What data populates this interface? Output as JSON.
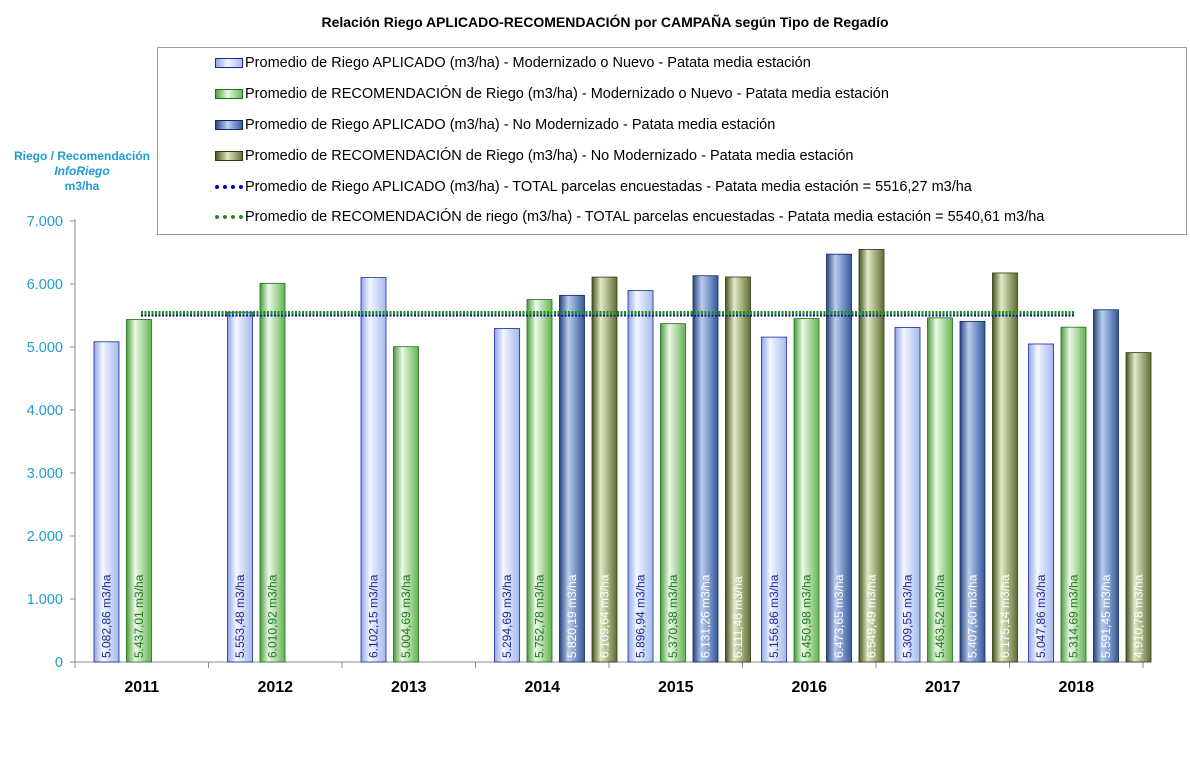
{
  "chart_data": {
    "type": "bar",
    "title": "Relación Riego APLICADO-RECOMENDACIÓN por CAMPAÑA  según Tipo de Regadío",
    "ylabel_lines": [
      "Riego / Recomendación",
      "InfoRiego",
      "m3/ha"
    ],
    "ylim": [
      0,
      7000
    ],
    "yticks": [
      "0",
      "1.000",
      "2.000",
      "3.000",
      "4.000",
      "5.000",
      "6.000",
      "7.000"
    ],
    "ytick_values": [
      0,
      1000,
      2000,
      3000,
      4000,
      5000,
      6000,
      7000
    ],
    "categories": [
      "2011",
      "2012",
      "2013",
      "2014",
      "2015",
      "2016",
      "2017",
      "2018"
    ],
    "unit_suffix": "m3/ha",
    "series": [
      {
        "name": "Promedio de Riego APLICADO (m3/ha) - Modernizado o Nuevo - Patata media estación",
        "style": "light-blue",
        "values": [
          5082.86,
          5553.48,
          6102.15,
          5294.69,
          5896.94,
          5156.86,
          5309.55,
          5047.86
        ],
        "labels": [
          "5.082,86",
          "5.553,48",
          "6.102,15",
          "5.294,69",
          "5.896,94",
          "5.156,86",
          "5.309,55",
          "5.047,86"
        ]
      },
      {
        "name": "Promedio de RECOMENDACIÓN de Riego (m3/ha) - Modernizado o Nuevo - Patata media estación",
        "style": "light-green",
        "values": [
          5437.01,
          6010.92,
          5004.69,
          5752.78,
          5370.38,
          5450.98,
          5463.52,
          5314.69
        ],
        "labels": [
          "5.437,01",
          "6.010,92",
          "5.004,69",
          "5.752,78",
          "5.370,38",
          "5.450,98",
          "5.463,52",
          "5.314,69"
        ]
      },
      {
        "name": "Promedio de Riego APLICADO (m3/ha) - No Modernizado - Patata media estación",
        "style": "dark-blue",
        "values": [
          null,
          null,
          null,
          5820.19,
          6131.26,
          6473.65,
          5407.6,
          5591.45
        ],
        "labels": [
          null,
          null,
          null,
          "5.820,19",
          "6.131,26",
          "6.473,65",
          "5.407,60",
          "5.591,45"
        ]
      },
      {
        "name": "Promedio de RECOMENDACIÓN de Riego (m3/ha) - No Modernizado - Patata media estación",
        "style": "dark-green",
        "values": [
          null,
          null,
          null,
          6109.64,
          6111.46,
          6549.49,
          6175.14,
          4910.78
        ],
        "labels": [
          null,
          null,
          null,
          "6.109,64",
          "6.111,46",
          "6.549,49",
          "6.175,14",
          "4.910,78"
        ]
      }
    ],
    "reference_lines": [
      {
        "name": "Promedio de Riego APLICADO (m3/ha) - TOTAL parcelas encuestadas - Patata media estación = 5516,27 m3/ha",
        "value": 5516.27,
        "color": "#0000cc"
      },
      {
        "name": "Promedio de RECOMENDACIÓN de riego (m3/ha) - TOTAL parcelas encuestadas - Patata media estación = 5540,61 m3/ha",
        "value": 5540.61,
        "color": "#1e8c1e"
      }
    ],
    "colors": {
      "axis_text": "#1f9bd0",
      "light-blue": "#c9d6f6",
      "light-green": "#a9d98f",
      "dark-blue": "#3c5ea0",
      "dark-green": "#6e7f3e"
    }
  }
}
